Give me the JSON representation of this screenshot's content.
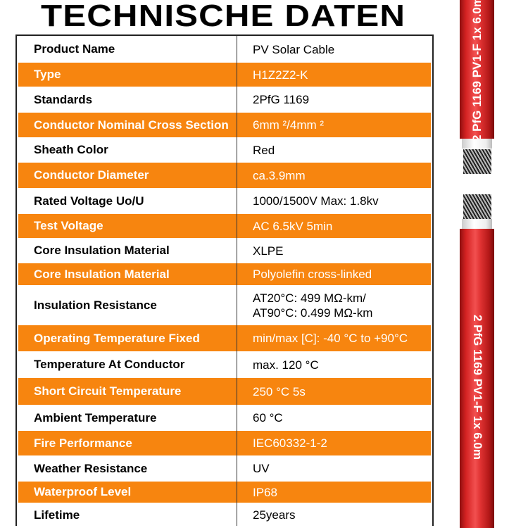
{
  "title": "TECHNISCHE DATEN",
  "accent_color": "#f7850f",
  "rows": [
    {
      "label": "Product Name",
      "value": "PV Solar Cable",
      "highlight": false
    },
    {
      "label": "Type",
      "value": "H1Z2Z2-K",
      "highlight": true
    },
    {
      "label": "Standards",
      "value": "2PfG 1169",
      "highlight": false
    },
    {
      "label": "Conductor Nominal Cross Section",
      "value": "6mm ²/4mm ²",
      "highlight": true
    },
    {
      "label": "Sheath Color",
      "value": "Red",
      "highlight": false
    },
    {
      "label": "Conductor Diameter",
      "value": "ca.3.9mm",
      "highlight": true
    },
    {
      "label": "Rated Voltage Uo/U",
      "value": "1000/1500V Max: 1.8kv",
      "highlight": false
    },
    {
      "label": "Test Voltage",
      "value": "AC 6.5kV 5min",
      "highlight": true
    },
    {
      "label": "Core Insulation Material",
      "value": "XLPE",
      "highlight": false
    },
    {
      "label": "Core Insulation Material",
      "value": "Polyolefin cross-linked",
      "highlight": true
    },
    {
      "label": "Insulation Resistance",
      "value": "AT20°C: 499 MΩ-km/",
      "value2": "AT90°C: 0.499 MΩ-km",
      "highlight": false
    },
    {
      "label": "Operating Temperature Fixed",
      "value": "min/max [C]: -40 °C to +90°C",
      "highlight": true
    },
    {
      "label": "Temperature At Conductor",
      "value": "max. 120 °C",
      "highlight": false
    },
    {
      "label": "Short Circuit Temperature",
      "value": "250 °C 5s",
      "highlight": true
    },
    {
      "label": "Ambient Temperature",
      "value": "60 °C",
      "highlight": false
    },
    {
      "label": "Fire Performance",
      "value": "IEC60332-1-2",
      "highlight": true
    },
    {
      "label": "Weather Resistance",
      "value": "UV",
      "highlight": false
    },
    {
      "label": "Waterproof Level",
      "value": "IP68",
      "highlight": true
    },
    {
      "label": "Lifetime",
      "value": "25years",
      "highlight": false
    }
  ],
  "cable": {
    "top_marking": "2 PfG 1169 PV1-F 1x 6.0m",
    "bottom_marking": "2 PfG 1169 PV1-F 1x 6.0m",
    "sheath_color": "#d42222"
  }
}
